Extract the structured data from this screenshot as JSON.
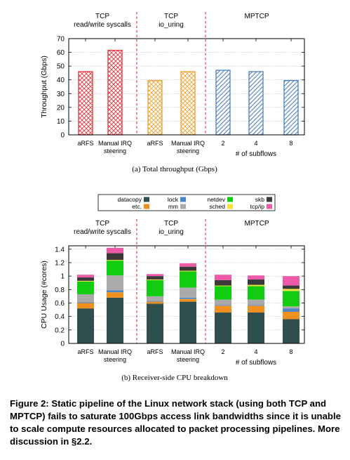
{
  "chart_data": [
    {
      "type": "bar",
      "subcaption": "(a)  Total throughput (Gbps)",
      "ylabel": "Throughput (Gbps)",
      "xlabel": "# of subflows",
      "ylim": [
        0,
        70
      ],
      "yticks": [
        "0",
        "10",
        "20",
        "30",
        "40",
        "50",
        "60",
        "70"
      ],
      "groups": [
        {
          "title": [
            "TCP",
            "read/write syscalls"
          ],
          "color": "#e8323c",
          "pattern": "crosshatch"
        },
        {
          "title": [
            "TCP",
            "io_uring"
          ],
          "color": "#f0a030",
          "pattern": "crosshatch"
        },
        {
          "title": [
            "MPTCP"
          ],
          "color": "#4a7fc0",
          "pattern": "diagonal"
        }
      ],
      "categories": [
        {
          "label": [
            "aRFS"
          ],
          "group": 0
        },
        {
          "label": [
            "Manual IRQ",
            "steering"
          ],
          "group": 0
        },
        {
          "label": [
            "aRFS"
          ],
          "group": 1
        },
        {
          "label": [
            "Manual IRQ",
            "steering"
          ],
          "group": 1
        },
        {
          "label": [
            "2"
          ],
          "group": 2
        },
        {
          "label": [
            "4"
          ],
          "group": 2
        },
        {
          "label": [
            "8"
          ],
          "group": 2
        }
      ],
      "values": [
        46,
        61.5,
        39.5,
        46,
        47,
        46,
        39.5
      ],
      "grid": true
    },
    {
      "type": "bar",
      "stacked": true,
      "subcaption": "(b)  Receiver-side CPU breakdown",
      "ylabel": "CPU Usage (#cores)",
      "xlabel": "# of subflows",
      "ylim": [
        0,
        1.45
      ],
      "yticks": [
        "0",
        "0.2",
        "0.4",
        "0.6",
        "0.8",
        "1",
        "1.2",
        "1.4"
      ],
      "legend_position": "top",
      "groups": [
        {
          "title": [
            "TCP",
            "read/write syscalls"
          ]
        },
        {
          "title": [
            "TCP",
            "io_uring"
          ]
        },
        {
          "title": [
            "MPTCP"
          ]
        }
      ],
      "categories": [
        {
          "label": [
            "aRFS"
          ]
        },
        {
          "label": [
            "Manual IRQ",
            "steering"
          ]
        },
        {
          "label": [
            "aRFS"
          ]
        },
        {
          "label": [
            "Manual IRQ",
            "steering"
          ]
        },
        {
          "label": [
            "2"
          ]
        },
        {
          "label": [
            "4"
          ]
        },
        {
          "label": [
            "8"
          ]
        }
      ],
      "series": [
        {
          "name": "datacopy",
          "color": "#2f4f4f",
          "values": [
            0.52,
            0.68,
            0.59,
            0.62,
            0.46,
            0.46,
            0.36
          ]
        },
        {
          "name": "etc.",
          "color": "#f0901e",
          "values": [
            0.08,
            0.08,
            0.03,
            0.04,
            0.1,
            0.1,
            0.11
          ]
        },
        {
          "name": "lock",
          "color": "#4a86c8",
          "values": [
            0.01,
            0.03,
            0.01,
            0.02,
            0.01,
            0.01,
            0.05
          ]
        },
        {
          "name": "mm",
          "color": "#aaaaaa",
          "values": [
            0.12,
            0.22,
            0.07,
            0.15,
            0.08,
            0.08,
            0.03
          ]
        },
        {
          "name": "netdev",
          "color": "#11cc11",
          "values": [
            0.19,
            0.22,
            0.24,
            0.24,
            0.2,
            0.2,
            0.23
          ]
        },
        {
          "name": "sched",
          "color": "#f5e23c",
          "values": [
            0.01,
            0.01,
            0.01,
            0.01,
            0.01,
            0.02,
            0.03
          ]
        },
        {
          "name": "skb",
          "color": "#3a3a3a",
          "values": [
            0.05,
            0.1,
            0.05,
            0.06,
            0.08,
            0.08,
            0.05
          ]
        },
        {
          "name": "tcp/ip",
          "color": "#ee5aa8",
          "values": [
            0.04,
            0.08,
            0.03,
            0.05,
            0.08,
            0.06,
            0.14
          ]
        }
      ],
      "grid": true
    }
  ],
  "caption": "Figure 2: Static pipeline of the Linux network stack (using both TCP and MPTCP) fails to saturate 100Gbps access link bandwidths since it is unable to scale compute resources allocated to packet processing pipelines. More discussion in §2.2."
}
